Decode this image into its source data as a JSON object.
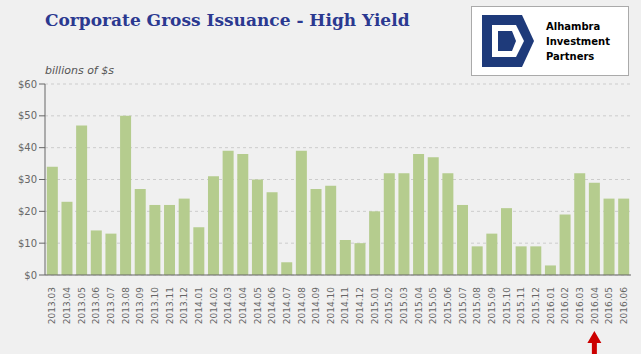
{
  "chart_data": {
    "type": "bar",
    "title": "Corporate Gross Issuance - High Yield",
    "subtitle": "billions of $s",
    "categories": [
      "2013.03",
      "2013.04",
      "2013.05",
      "2013.06",
      "2013.07",
      "2013.08",
      "2013.09",
      "2013.10",
      "2013.11",
      "2013.12",
      "2014.01",
      "2014.02",
      "2014.03",
      "2014.04",
      "2014.05",
      "2014.06",
      "2014.07",
      "2014.08",
      "2014.09",
      "2014.10",
      "2014.11",
      "2014.12",
      "2015.01",
      "2015.02",
      "2015.03",
      "2015.04",
      "2015.05",
      "2015.06",
      "2015.07",
      "2015.08",
      "2015.09",
      "2015.10",
      "2015.11",
      "2015.12",
      "2016.01",
      "2016.02",
      "2016.03",
      "2016.04",
      "2016.05",
      "2016.06"
    ],
    "values": [
      34,
      23,
      47,
      14,
      13,
      50,
      27,
      22,
      22,
      24,
      15,
      31,
      39,
      38,
      30,
      26,
      4,
      39,
      27,
      28,
      11,
      10,
      20,
      32,
      32,
      38,
      37,
      32,
      22,
      9,
      13,
      21,
      9,
      9,
      3,
      19,
      32,
      29,
      24,
      24
    ],
    "color": "#b5cc8e",
    "ylim": [
      0,
      60
    ],
    "yticks": [
      {
        "value": 0,
        "label": "$0"
      },
      {
        "value": 10,
        "label": "$10"
      },
      {
        "value": 20,
        "label": "$20"
      },
      {
        "value": 30,
        "label": "$30"
      },
      {
        "value": 40,
        "label": "$40"
      },
      {
        "value": 50,
        "label": "$50"
      },
      {
        "value": 60,
        "label": "$60"
      }
    ],
    "grid": true,
    "annotations": [
      {
        "x": "2016.04",
        "marker": "arrow",
        "color": "#cc0000"
      },
      {
        "text": "Alhambra"
      },
      {
        "text": "Investment"
      },
      {
        "text": "Partners"
      }
    ]
  }
}
